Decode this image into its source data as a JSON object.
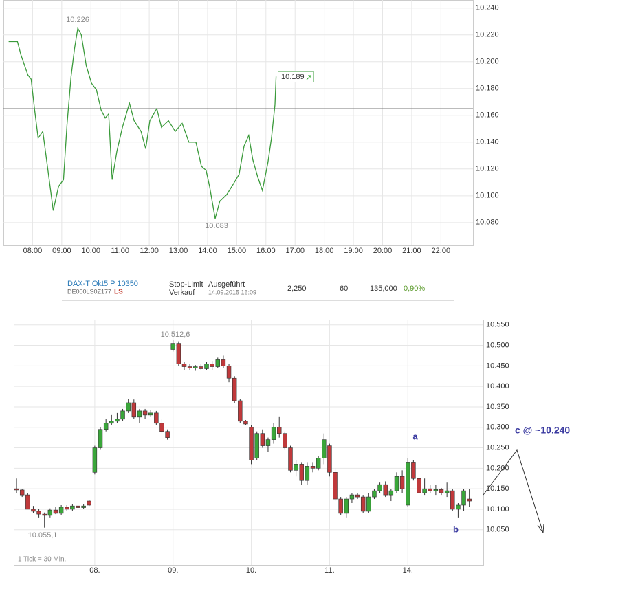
{
  "chart_data": [
    {
      "type": "line",
      "series": [
        {
          "color": "#3a9a3a",
          "x": [
            7.18,
            7.48,
            7.6,
            7.84,
            7.95,
            8.07,
            8.19,
            8.35,
            8.54,
            8.71,
            8.89,
            9.06,
            9.18,
            9.32,
            9.44,
            9.55,
            9.67,
            9.84,
            10.02,
            10.19,
            10.35,
            10.49,
            10.61,
            10.73,
            10.89,
            11.08,
            11.32,
            11.48,
            11.72,
            11.88,
            12.02,
            12.26,
            12.42,
            12.66,
            12.89,
            13.13,
            13.36,
            13.6,
            13.79,
            13.95,
            14.07,
            14.26,
            14.42,
            14.66,
            14.89,
            15.08,
            15.25,
            15.41,
            15.55,
            15.72,
            15.88,
            16.07,
            16.19,
            16.31,
            16.35
          ],
          "values": [
            10215,
            10215,
            10205,
            10190,
            10187,
            10164,
            10143,
            10148,
            10117,
            10089,
            10107,
            10112,
            10153,
            10189,
            10210,
            10225,
            10220,
            10197,
            10184,
            10179,
            10164,
            10158,
            10161,
            10112,
            10133,
            10151,
            10169,
            10156,
            10148,
            10135,
            10156,
            10165,
            10151,
            10156,
            10148,
            10154,
            10140,
            10140,
            10122,
            10119,
            10107,
            10083,
            10096,
            10101,
            10109,
            10116,
            10137,
            10145,
            10127,
            10114,
            10104,
            10125,
            10143,
            10168,
            10189
          ]
        }
      ],
      "reference_line": 10165,
      "xlim": [
        7,
        23.1
      ],
      "ylim": [
        10063,
        10246
      ],
      "xticks": [
        {
          "value": 8,
          "label": "08:00"
        },
        {
          "value": 9,
          "label": "09:00"
        },
        {
          "value": 10,
          "label": "10:00"
        },
        {
          "value": 11,
          "label": "11:00"
        },
        {
          "value": 12,
          "label": "12:00"
        },
        {
          "value": 13,
          "label": "13:00"
        },
        {
          "value": 14,
          "label": "14:00"
        },
        {
          "value": 15,
          "label": "15:00"
        },
        {
          "value": 16,
          "label": "16:00"
        },
        {
          "value": 17,
          "label": "17:00"
        },
        {
          "value": 18,
          "label": "18:00"
        },
        {
          "value": 19,
          "label": "19:00"
        },
        {
          "value": 20,
          "label": "20:00"
        },
        {
          "value": 21,
          "label": "21:00"
        },
        {
          "value": 22,
          "label": "22:00"
        }
      ],
      "yticks": [
        {
          "value": 10080,
          "label": "10.080"
        },
        {
          "value": 10100,
          "label": "10.100"
        },
        {
          "value": 10120,
          "label": "10.120"
        },
        {
          "value": 10140,
          "label": "10.140"
        },
        {
          "value": 10160,
          "label": "10.160"
        },
        {
          "value": 10180,
          "label": "10.180"
        },
        {
          "value": 10200,
          "label": "10.200"
        },
        {
          "value": 10220,
          "label": "10.220"
        },
        {
          "value": 10240,
          "label": "10.240"
        }
      ],
      "grid": true,
      "annotations": [
        "10.226",
        "10.083",
        "10.189"
      ]
    },
    {
      "type": "candlestick",
      "up_color": "#3aa63a",
      "down_color": "#c0393b",
      "open": [
        10150,
        10147,
        10135,
        10100,
        10095,
        10088,
        10085,
        10098,
        10090,
        10105,
        10100,
        10108,
        10104,
        10120,
        10190,
        10250,
        10295,
        10310,
        10315,
        10320,
        10340,
        10360,
        10325,
        10340,
        10330,
        10335,
        10310,
        10290,
        10490,
        10505,
        10455,
        10448,
        10445,
        10448,
        10443,
        10455,
        10448,
        10465,
        10450,
        10420,
        10365,
        10315,
        10300,
        10225,
        10285,
        10255,
        10270,
        10300,
        10285,
        10250,
        10195,
        10210,
        10170,
        10205,
        10200,
        10225,
        10255,
        10190,
        10125,
        10090,
        10125,
        10135,
        10130,
        10095,
        10130,
        10145,
        10160,
        10135,
        10145,
        10180,
        10110,
        10215,
        10175,
        10140,
        10150,
        10145,
        10148,
        10140,
        10145,
        10100,
        10110,
        10125
      ],
      "high": [
        10175,
        10150,
        10140,
        10108,
        10100,
        10092,
        10102,
        10105,
        10110,
        10110,
        10112,
        10110,
        10112,
        10122,
        10255,
        10300,
        10320,
        10330,
        10335,
        10345,
        10370,
        10368,
        10345,
        10345,
        10342,
        10340,
        10320,
        10295,
        10512.6,
        10510,
        10460,
        10455,
        10452,
        10455,
        10460,
        10462,
        10470,
        10475,
        10455,
        10425,
        10370,
        10318,
        10305,
        10290,
        10295,
        10275,
        10310,
        10325,
        10290,
        10255,
        10220,
        10215,
        10215,
        10215,
        10230,
        10285,
        10260,
        10200,
        10130,
        10130,
        10140,
        10140,
        10135,
        10140,
        10150,
        10165,
        10168,
        10150,
        10190,
        10195,
        10225,
        10220,
        10180,
        10175,
        10160,
        10160,
        10152,
        10165,
        10150,
        10115,
        10150,
        10150
      ],
      "low": [
        10140,
        10130,
        10100,
        10090,
        10080,
        10055.1,
        10080,
        10088,
        10085,
        10095,
        10095,
        10100,
        10100,
        10108,
        10185,
        10245,
        10290,
        10305,
        10310,
        10315,
        10335,
        10320,
        10310,
        10320,
        10325,
        10305,
        10285,
        10270,
        10485,
        10450,
        10440,
        10440,
        10438,
        10440,
        10440,
        10440,
        10445,
        10445,
        10410,
        10360,
        10310,
        10305,
        10210,
        10220,
        10250,
        10240,
        10260,
        10275,
        10245,
        10190,
        10180,
        10160,
        10160,
        10190,
        10195,
        10210,
        10180,
        10120,
        10085,
        10080,
        10115,
        10125,
        10090,
        10090,
        10125,
        10140,
        10130,
        10120,
        10140,
        10140,
        10105,
        10170,
        10135,
        10135,
        10140,
        10135,
        10135,
        10130,
        10095,
        10080,
        10095,
        10105
      ],
      "close": [
        10147,
        10135,
        10100,
        10095,
        10088,
        10085,
        10098,
        10090,
        10105,
        10100,
        10108,
        10104,
        10108,
        10110,
        10250,
        10295,
        10310,
        10315,
        10320,
        10340,
        10360,
        10325,
        10340,
        10330,
        10335,
        10310,
        10290,
        10275,
        10505,
        10455,
        10448,
        10445,
        10448,
        10443,
        10455,
        10448,
        10465,
        10450,
        10420,
        10365,
        10315,
        10308,
        10220,
        10285,
        10255,
        10270,
        10300,
        10285,
        10250,
        10195,
        10210,
        10170,
        10205,
        10200,
        10225,
        10270,
        10190,
        10125,
        10090,
        10125,
        10135,
        10130,
        10095,
        10130,
        10145,
        10160,
        10135,
        10145,
        10180,
        10150,
        10215,
        10175,
        10140,
        10150,
        10145,
        10148,
        10140,
        10145,
        10100,
        10110,
        10145,
        10120
      ],
      "xlim": [
        -0.5,
        83.5
      ],
      "ylim": [
        9964,
        10563
      ],
      "xticks": [
        {
          "value": 14,
          "label": "08."
        },
        {
          "value": 28,
          "label": "09."
        },
        {
          "value": 42,
          "label": "10."
        },
        {
          "value": 56,
          "label": "11."
        },
        {
          "value": 70,
          "label": "14."
        }
      ],
      "yticks": [
        {
          "value": 10050,
          "label": "10.050"
        },
        {
          "value": 10100,
          "label": "10.100"
        },
        {
          "value": 10150,
          "label": "10.150"
        },
        {
          "value": 10200,
          "label": "10.200"
        },
        {
          "value": 10250,
          "label": "10.250"
        },
        {
          "value": 10300,
          "label": "10.300"
        },
        {
          "value": 10350,
          "label": "10.350"
        },
        {
          "value": 10400,
          "label": "10.400"
        },
        {
          "value": 10450,
          "label": "10.450"
        },
        {
          "value": 10500,
          "label": "10.500"
        },
        {
          "value": 10550,
          "label": "10.550"
        }
      ],
      "grid": true,
      "annotations": [
        "10.512,6",
        "10.055,1",
        "1 Tick = 30 Min.",
        "a",
        "b",
        "c @ ~10.240"
      ]
    }
  ],
  "trade": {
    "product": "DAX-T Okt5 P 10350",
    "isin": "DE000LS0Z177",
    "logo": "LS",
    "order_type": "Stop-Limit",
    "side": "Verkauf",
    "status": "Ausgeführt",
    "datetime": "14.09.2015 16:09",
    "price": "2,250",
    "quantity": "60",
    "total": "135,000",
    "change": "0,90%"
  }
}
